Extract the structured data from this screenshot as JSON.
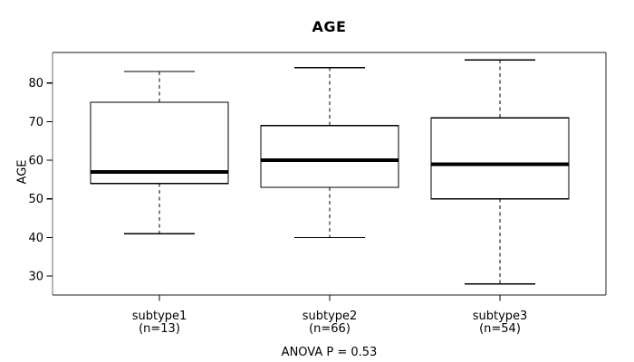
{
  "chart_data": {
    "type": "boxplot",
    "title": "AGE",
    "ylabel": "AGE",
    "footer": "ANOVA P = 0.53",
    "yticks": [
      30,
      40,
      50,
      60,
      70,
      80
    ],
    "ylim": [
      25.1,
      87.9
    ],
    "grid": false,
    "legend": false,
    "categories": [
      "subtype1",
      "subtype2",
      "subtype3"
    ],
    "groups": [
      {
        "label": "subtype1",
        "sublabel": "(n=13)",
        "n": 13,
        "stats": {
          "whisker_low": 41,
          "q1": 54,
          "median": 57,
          "q3": 75,
          "whisker_high": 83
        }
      },
      {
        "label": "subtype2",
        "sublabel": "(n=66)",
        "n": 66,
        "stats": {
          "whisker_low": 40,
          "q1": 53,
          "median": 60,
          "q3": 69,
          "whisker_high": 84
        }
      },
      {
        "label": "subtype3",
        "sublabel": "(n=54)",
        "n": 54,
        "stats": {
          "whisker_low": 28,
          "q1": 50,
          "median": 59,
          "q3": 71,
          "whisker_high": 86
        }
      }
    ],
    "colors": {
      "box_stroke": "#000000",
      "box_fill": "#ffffff",
      "median": "#000000",
      "frame_top": "#8c8c8c",
      "frame_side": "#6e6e6e",
      "frame_dark": "#1f1f1f",
      "text": "#000000",
      "background": "#ffffff"
    }
  }
}
